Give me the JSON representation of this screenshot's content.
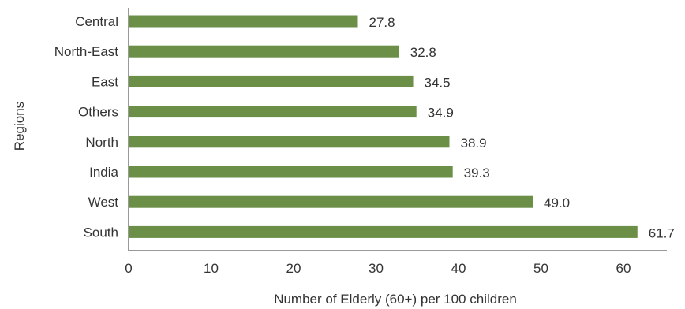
{
  "chart_data": {
    "type": "bar",
    "orientation": "horizontal",
    "categories": [
      "Central",
      "North-East",
      "East",
      "Others",
      "North",
      "India",
      "West",
      "South"
    ],
    "values": [
      27.8,
      32.8,
      34.5,
      34.9,
      38.9,
      39.3,
      49.0,
      61.7
    ],
    "value_labels": [
      "27.8",
      "32.8",
      "34.5",
      "34.9",
      "38.9",
      "39.3",
      "49.0",
      "61.7"
    ],
    "xlabel": "Number of Elderly (60+) per 100 children",
    "ylabel": "Regions",
    "xlim": [
      0,
      65
    ],
    "xticks": [
      0,
      10,
      20,
      30,
      40,
      50,
      60
    ],
    "grid": false,
    "bar_color": "#6b8f47"
  }
}
